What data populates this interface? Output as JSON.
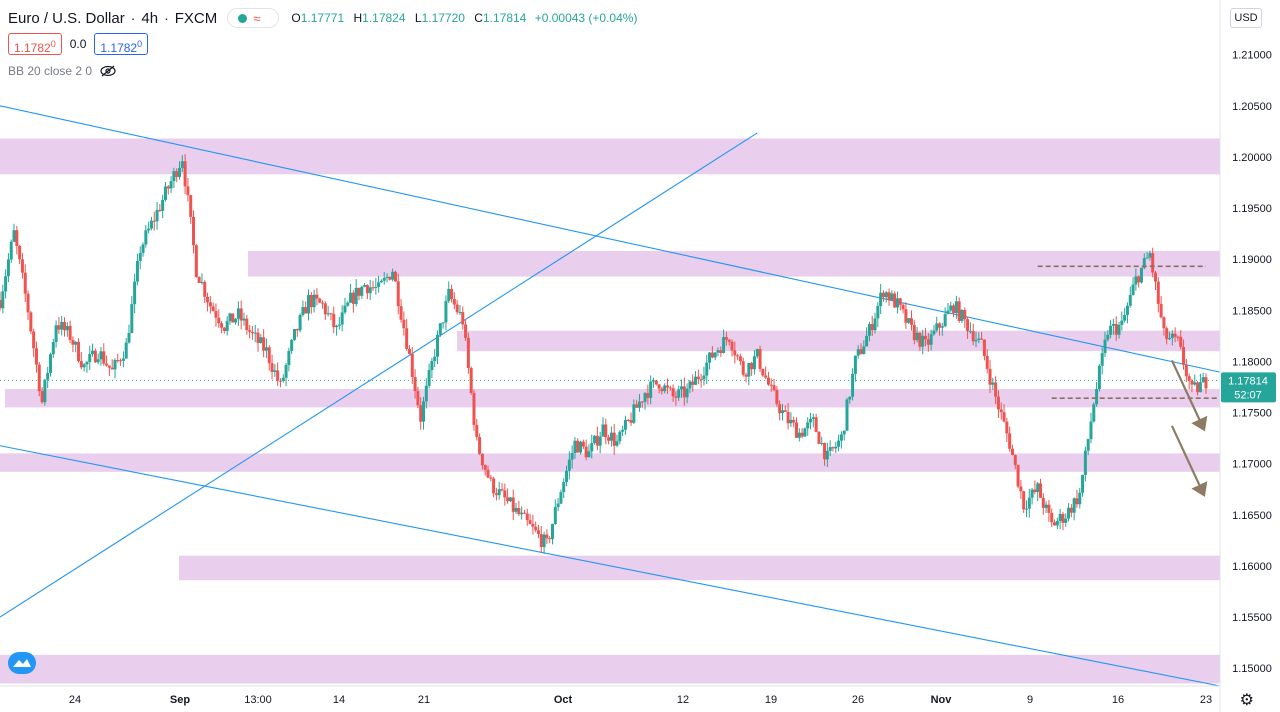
{
  "header": {
    "symbol": "Euro / U.S. Dollar",
    "interval": "4h",
    "exchange": "FXCM",
    "ohlc": {
      "o_label": "O",
      "o": "1.17771",
      "h_label": "H",
      "h": "1.17824",
      "l_label": "L",
      "l": "1.17720",
      "c_label": "C",
      "c": "1.17814",
      "change": "+0.00043 (+0.04%)"
    }
  },
  "quote": {
    "sell": "1.1782",
    "sell_sup": "0",
    "spread": "0.0",
    "buy": "1.1782",
    "buy_sup": "0"
  },
  "indicator": {
    "label": "BB 20 close 2 0"
  },
  "currency": "USD",
  "colors": {
    "up": "#26a69a",
    "down": "#ef5350",
    "zone": "#e1bee7",
    "trend": "#2196f3",
    "arrow": "#8d7b64",
    "level": "#8d6e63",
    "price_tag": "#26a69a"
  },
  "icons": {
    "visibility": "eye-off-icon",
    "settings": "gear-icon",
    "logo": "tradingview-logo-icon",
    "dot": "market-open-dot-icon",
    "wave": "wave-icon"
  },
  "chart_data": {
    "type": "candlestick",
    "ylim": [
      1.14825,
      1.21535
    ],
    "price_ticks": [
      "1.21000",
      "1.20500",
      "1.20000",
      "1.19500",
      "1.19000",
      "1.18500",
      "1.18000",
      "1.17500",
      "1.17000",
      "1.16500",
      "1.16000",
      "1.15500",
      "1.15000"
    ],
    "time_ticks": [
      "24",
      "Sep",
      "13:00",
      "14",
      "21",
      "Oct",
      "12",
      "19",
      "26",
      "Nov",
      "9",
      "16",
      "23"
    ],
    "last_price": "1.17814",
    "countdown": "52:07",
    "zones": [
      {
        "low": 1.1983,
        "high": 1.2018
      },
      {
        "low": 1.1883,
        "high": 1.1908
      },
      {
        "low": 1.181,
        "high": 1.183
      },
      {
        "low": 1.1755,
        "high": 1.1773
      },
      {
        "low": 1.1692,
        "high": 1.171
      },
      {
        "low": 1.1586,
        "high": 1.161
      },
      {
        "low": 1.1485,
        "high": 1.1513
      }
    ],
    "trendlines": [
      {
        "from": [
          "Aug 19",
          1.205
        ],
        "to": [
          "Nov 14",
          1.17895
        ]
      },
      {
        "from": [
          "Aug 19",
          1.155
        ],
        "to": [
          "Oct 12",
          1.20235
        ]
      },
      {
        "from": [
          "Aug 19",
          1.17175
        ],
        "to": [
          "Nov 14",
          1.14825
        ]
      }
    ],
    "levels": [
      {
        "value": 1.1893,
        "from": "Nov 1",
        "to": "Nov 13"
      },
      {
        "value": 1.1764,
        "from": "Nov 2",
        "to": "Nov 14"
      }
    ],
    "arrows": [
      {
        "from": [
          "Nov 10",
          1.1801
        ],
        "to": [
          "Nov 12",
          1.17335
        ]
      },
      {
        "from": [
          "Nov 10",
          1.1737
        ],
        "to": [
          "Nov 12",
          1.16695
        ]
      }
    ],
    "path": [
      [
        "Aug 19",
        1.186
      ],
      [
        "Aug 20",
        1.1925
      ],
      [
        "Aug 21",
        1.185
      ],
      [
        "Aug 22",
        1.176
      ],
      [
        "Aug 23",
        1.1838
      ],
      [
        "Aug 24",
        1.1825
      ],
      [
        "Aug 25",
        1.1795
      ],
      [
        "Aug 26",
        1.181
      ],
      [
        "Aug 27",
        1.179
      ],
      [
        "Aug 28",
        1.1815
      ],
      [
        "Aug 29",
        1.191
      ],
      [
        "Aug 30",
        1.194
      ],
      [
        "Sep 1",
        1.2
      ],
      [
        "Sep 2",
        1.189
      ],
      [
        "Sep 3",
        1.1855
      ],
      [
        "Sep 4",
        1.1835
      ],
      [
        "Sep 5",
        1.1845
      ],
      [
        "Sep 6",
        1.1825
      ],
      [
        "Sep 7",
        1.181
      ],
      [
        "Sep 8",
        1.1775
      ],
      [
        "Sep 9",
        1.1825
      ],
      [
        "Sep 10",
        1.186
      ],
      [
        "Sep 11",
        1.1855
      ],
      [
        "Sep 12",
        1.183
      ],
      [
        "Sep 13",
        1.186
      ],
      [
        "Sep 14",
        1.1875
      ],
      [
        "Sep 15",
        1.187
      ],
      [
        "Sep 16",
        1.189
      ],
      [
        "Sep 17",
        1.182
      ],
      [
        "Sep 18",
        1.1745
      ],
      [
        "Sep 19",
        1.181
      ],
      [
        "Sep 20",
        1.1865
      ],
      [
        "Sep 21",
        1.184
      ],
      [
        "Sep 22",
        1.172
      ],
      [
        "Sep 23",
        1.168
      ],
      [
        "Sep 24",
        1.1665
      ],
      [
        "Sep 25",
        1.165
      ],
      [
        "Sep 26",
        1.1635
      ],
      [
        "Sep 27",
        1.162
      ],
      [
        "Sep 28",
        1.1675
      ],
      [
        "Sep 29",
        1.172
      ],
      [
        "Sep 30",
        1.171
      ],
      [
        "Oct 1",
        1.1735
      ],
      [
        "Oct 2",
        1.172
      ],
      [
        "Oct 3",
        1.1745
      ],
      [
        "Oct 4",
        1.177
      ],
      [
        "Oct 5",
        1.178
      ],
      [
        "Oct 6",
        1.1765
      ],
      [
        "Oct 7",
        1.177
      ],
      [
        "Oct 8",
        1.179
      ],
      [
        "Oct 9",
        1.181
      ],
      [
        "Oct 10",
        1.1825
      ],
      [
        "Oct 11",
        1.179
      ],
      [
        "Oct 12",
        1.1805
      ],
      [
        "Oct 13",
        1.177
      ],
      [
        "Oct 14",
        1.1745
      ],
      [
        "Oct 15",
        1.173
      ],
      [
        "Oct 16",
        1.174
      ],
      [
        "Oct 17",
        1.1705
      ],
      [
        "Oct 18",
        1.1725
      ],
      [
        "Oct 19",
        1.18
      ],
      [
        "Oct 20",
        1.183
      ],
      [
        "Oct 21",
        1.187
      ],
      [
        "Oct 22",
        1.1855
      ],
      [
        "Oct 23",
        1.183
      ],
      [
        "Oct 24",
        1.1815
      ],
      [
        "Oct 25",
        1.1835
      ],
      [
        "Oct 26",
        1.1855
      ],
      [
        "Oct 27",
        1.1835
      ],
      [
        "Oct 28",
        1.1815
      ],
      [
        "Oct 29",
        1.1765
      ],
      [
        "Oct 30",
        1.172
      ],
      [
        "Oct 31",
        1.166
      ],
      [
        "Nov 1",
        1.1675
      ],
      [
        "Nov 2",
        1.164
      ],
      [
        "Nov 3",
        1.165
      ],
      [
        "Nov 4",
        1.167
      ],
      [
        "Nov 5",
        1.176
      ],
      [
        "Nov 6",
        1.183
      ],
      [
        "Nov 7",
        1.1835
      ],
      [
        "Nov 8",
        1.188
      ],
      [
        "Nov 9",
        1.1905
      ],
      [
        "Nov 10",
        1.1825
      ],
      [
        "Nov 11",
        1.1818
      ],
      [
        "Nov 12",
        1.177
      ],
      [
        "Nov 13",
        1.1781
      ]
    ]
  }
}
